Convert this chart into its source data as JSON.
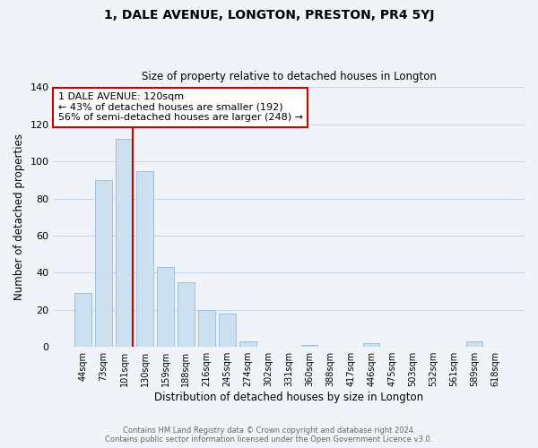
{
  "title": "1, DALE AVENUE, LONGTON, PRESTON, PR4 5YJ",
  "subtitle": "Size of property relative to detached houses in Longton",
  "xlabel": "Distribution of detached houses by size in Longton",
  "ylabel": "Number of detached properties",
  "bar_labels": [
    "44sqm",
    "73sqm",
    "101sqm",
    "130sqm",
    "159sqm",
    "188sqm",
    "216sqm",
    "245sqm",
    "274sqm",
    "302sqm",
    "331sqm",
    "360sqm",
    "388sqm",
    "417sqm",
    "446sqm",
    "475sqm",
    "503sqm",
    "532sqm",
    "561sqm",
    "589sqm",
    "618sqm"
  ],
  "bar_values": [
    29,
    90,
    112,
    95,
    43,
    35,
    20,
    18,
    3,
    0,
    0,
    1,
    0,
    0,
    2,
    0,
    0,
    0,
    0,
    3,
    0
  ],
  "bar_color": "#cce0f0",
  "bar_edge_color": "#a0c4e0",
  "highlight_bar_index": 2,
  "highlight_color": "#cc0000",
  "annotation_line1": "1 DALE AVENUE: 120sqm",
  "annotation_line2": "← 43% of detached houses are smaller (192)",
  "annotation_line3": "56% of semi-detached houses are larger (248) →",
  "ylim": [
    0,
    140
  ],
  "background_color": "#f0f4f8",
  "grid_color": "#c8d8e8",
  "footer_line1": "Contains HM Land Registry data © Crown copyright and database right 2024.",
  "footer_line2": "Contains public sector information licensed under the Open Government Licence v3.0."
}
